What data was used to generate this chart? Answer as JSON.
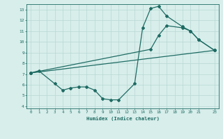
{
  "line1": {
    "x": [
      0,
      1,
      3,
      4,
      5,
      6,
      7,
      8,
      9,
      10,
      11,
      13,
      14,
      15,
      16,
      17,
      19,
      20,
      21,
      23
    ],
    "y": [
      7.1,
      7.3,
      6.1,
      5.5,
      5.7,
      5.8,
      5.8,
      5.5,
      4.7,
      4.6,
      4.6,
      6.1,
      11.3,
      13.1,
      13.3,
      12.4,
      11.4,
      11.0,
      10.2,
      9.2
    ]
  },
  "line2": {
    "x": [
      0,
      23
    ],
    "y": [
      7.1,
      9.2
    ]
  },
  "line3": {
    "x": [
      0,
      15,
      16,
      17,
      19,
      20,
      21,
      23
    ],
    "y": [
      7.1,
      9.3,
      10.6,
      11.5,
      11.3,
      11.0,
      10.2,
      9.2
    ]
  },
  "bg_color": "#d8eeeb",
  "line_color": "#1e6b63",
  "grid_major_color": "#b8d8d4",
  "grid_minor_color": "#cce4e1",
  "axis_color": "#1e6b63",
  "xlabel": "Humidex (Indice chaleur)",
  "xlim": [
    -0.5,
    23.5
  ],
  "ylim": [
    3.8,
    13.5
  ],
  "xticks": [
    0,
    1,
    2,
    3,
    4,
    5,
    6,
    7,
    8,
    9,
    10,
    11,
    12,
    13,
    14,
    15,
    16,
    17,
    18,
    19,
    20,
    21,
    23
  ],
  "yticks": [
    4,
    5,
    6,
    7,
    8,
    9,
    10,
    11,
    12,
    13
  ]
}
